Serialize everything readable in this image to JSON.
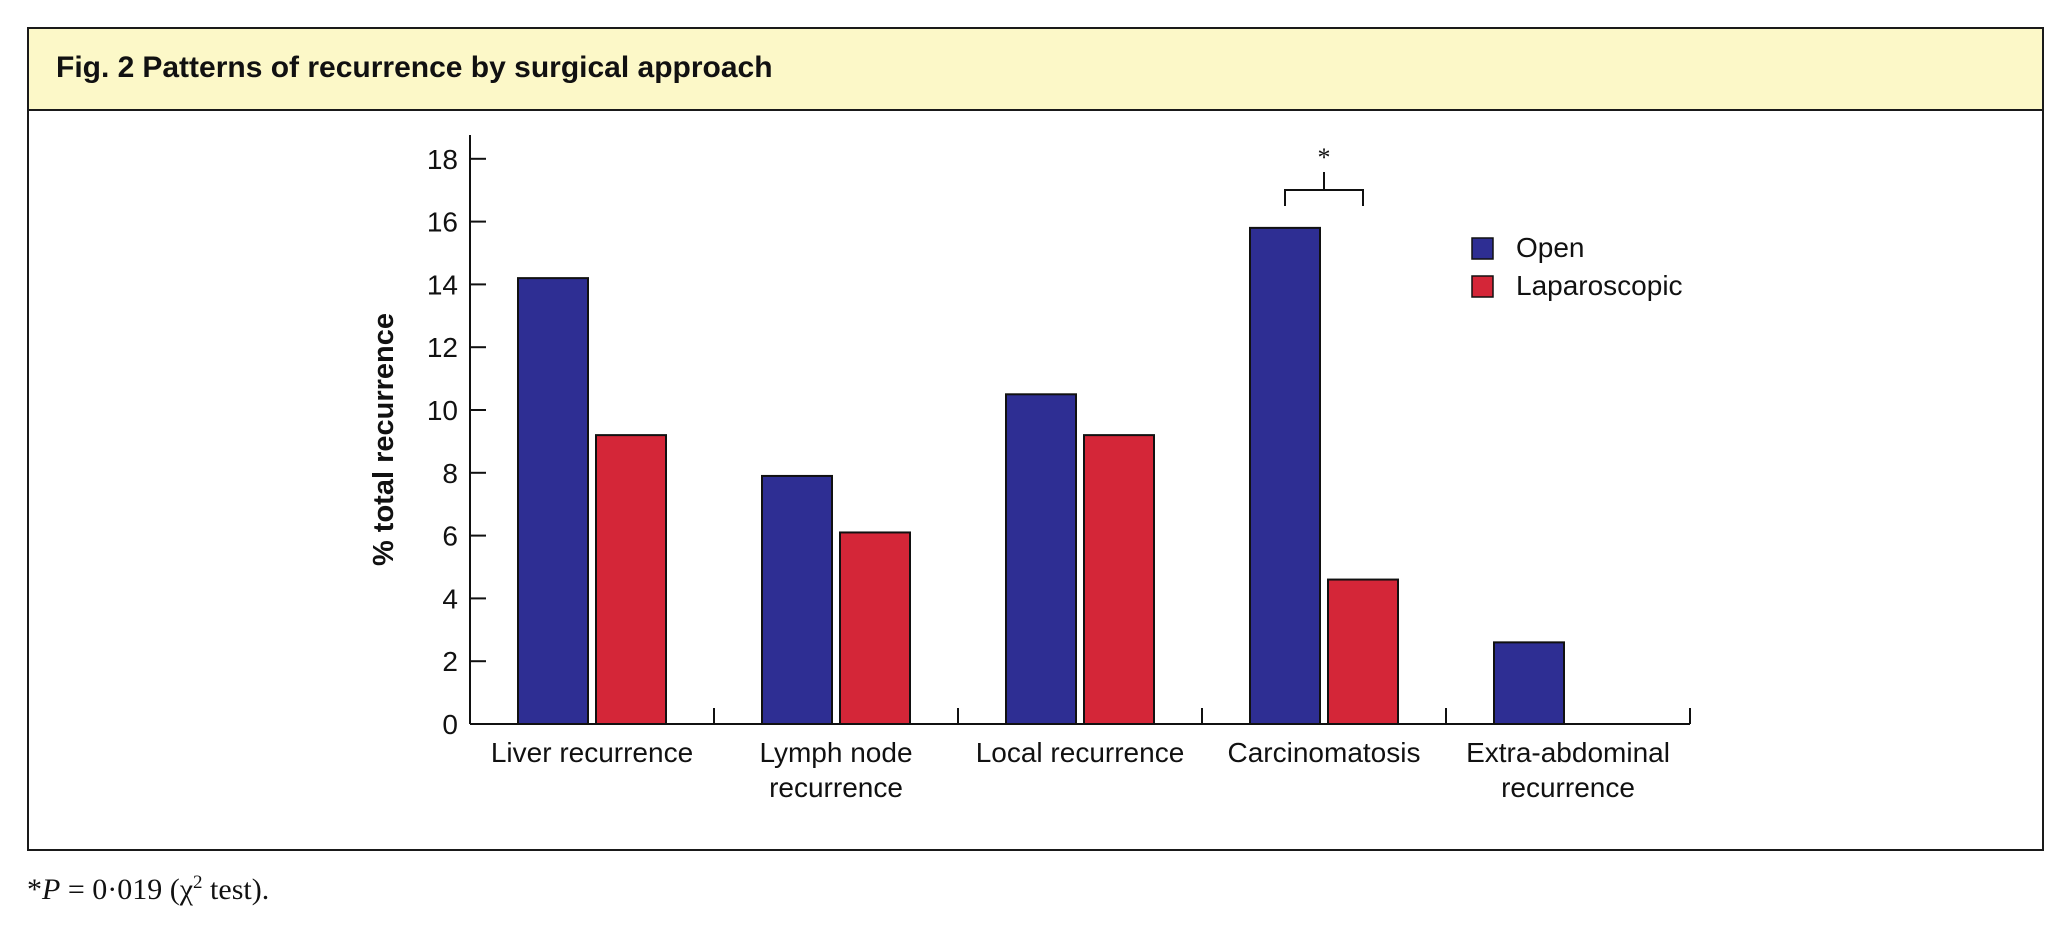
{
  "figure": {
    "number": "Fig. 2",
    "title": "Patterns of recurrence by surgical approach"
  },
  "footnote": {
    "star": "*",
    "p_label": "P",
    "p_text": " = 0·019 (χ",
    "chi_exp": "2",
    "test_text": " test)."
  },
  "colors": {
    "open": "#2e2e93",
    "laparoscopic": "#d42638",
    "caption_bg": "#fcf8c8"
  },
  "chart_data": {
    "type": "bar",
    "title": "",
    "xlabel": "",
    "ylabel": "% total recurrence",
    "ylim": [
      0,
      18
    ],
    "yticks": [
      "0",
      "2",
      "4",
      "6",
      "8",
      "10",
      "12",
      "14",
      "16",
      "18"
    ],
    "categories": [
      [
        "Liver recurrence"
      ],
      [
        "Lymph node",
        "recurrence"
      ],
      [
        "Local recurrence"
      ],
      [
        "Carcinomatosis"
      ],
      [
        "Extra-abdominal",
        "recurrence"
      ]
    ],
    "series": [
      {
        "name": "Open",
        "values": [
          14.2,
          7.9,
          10.5,
          15.8,
          2.6
        ]
      },
      {
        "name": "Laparoscopic",
        "values": [
          9.2,
          6.1,
          9.2,
          4.6,
          null
        ]
      }
    ],
    "legend_position": "top-right",
    "grid": false,
    "annotations": [
      {
        "text": "*",
        "category_index": 3,
        "type": "significance-bracket"
      }
    ]
  }
}
